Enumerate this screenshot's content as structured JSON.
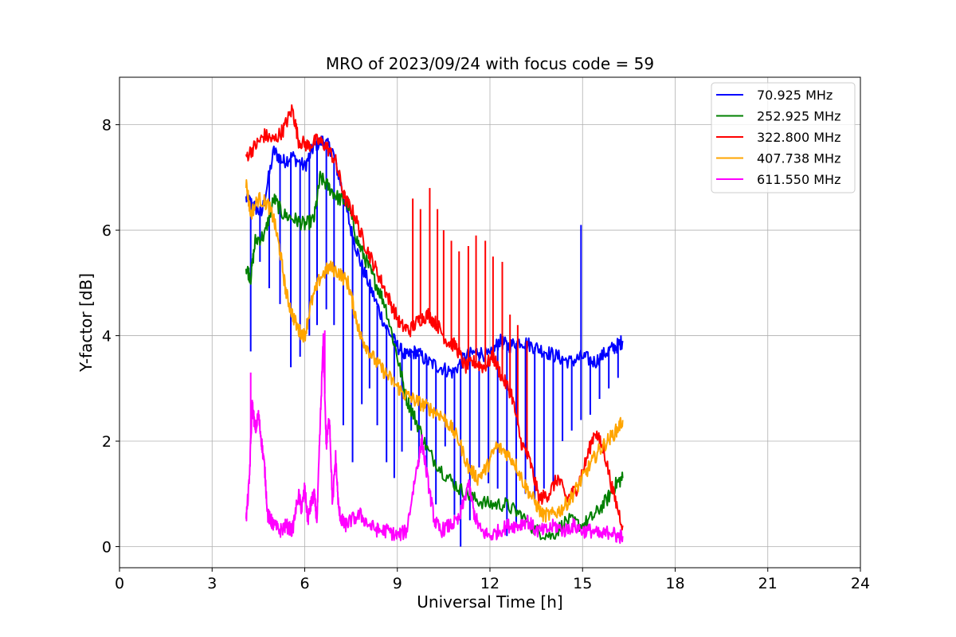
{
  "chart_data": {
    "type": "line",
    "title": "MRO of 2023/09/24 with focus code = 59",
    "xlabel": "Universal Time [h]",
    "ylabel": "Y-factor [dB]",
    "xlim": [
      0,
      24
    ],
    "ylim": [
      -0.4,
      8.9
    ],
    "xticks": [
      0,
      3,
      6,
      9,
      12,
      15,
      18,
      21,
      24
    ],
    "yticks": [
      0,
      2,
      4,
      6,
      8
    ],
    "xtick_labels": [
      "0",
      "3",
      "6",
      "9",
      "12",
      "15",
      "18",
      "21",
      "24"
    ],
    "ytick_labels": [
      "0",
      "2",
      "4",
      "6",
      "8"
    ],
    "grid": true,
    "legend_position": "top-right",
    "series": [
      {
        "name": "70.925 MHz",
        "legend_label": " 70.925 MHz",
        "color": "#0000ff",
        "x": [
          4.1,
          4.3,
          4.6,
          5.0,
          5.3,
          5.6,
          6.0,
          6.3,
          6.6,
          6.9,
          7.2,
          7.5,
          7.8,
          8.2,
          8.6,
          9.0,
          9.3,
          9.6,
          10.0,
          10.4,
          10.8,
          11.2,
          11.6,
          12.0,
          12.3,
          12.6,
          13.0,
          13.4,
          13.8,
          14.2,
          14.6,
          15.0,
          15.4,
          15.8,
          16.1,
          16.3
        ],
        "y": [
          6.6,
          6.5,
          6.3,
          7.5,
          7.3,
          7.4,
          7.2,
          7.6,
          7.7,
          7.5,
          6.8,
          6.0,
          5.4,
          4.8,
          4.2,
          3.8,
          3.6,
          3.7,
          3.5,
          3.4,
          3.3,
          3.6,
          3.7,
          3.6,
          3.9,
          3.8,
          3.9,
          3.8,
          3.7,
          3.6,
          3.5,
          3.6,
          3.5,
          3.7,
          3.8,
          3.9
        ],
        "dips": [
          [
            4.25,
            3.7
          ],
          [
            4.55,
            5.4
          ],
          [
            4.85,
            4.9
          ],
          [
            5.2,
            4.6
          ],
          [
            5.55,
            3.4
          ],
          [
            5.85,
            3.6
          ],
          [
            6.15,
            4.0
          ],
          [
            6.4,
            4.2
          ],
          [
            6.7,
            4.5
          ],
          [
            6.95,
            4.2
          ],
          [
            7.25,
            2.3
          ],
          [
            7.55,
            1.6
          ],
          [
            7.85,
            2.7
          ],
          [
            8.1,
            3.0
          ],
          [
            8.35,
            2.3
          ],
          [
            8.65,
            1.6
          ],
          [
            8.9,
            1.3
          ],
          [
            9.15,
            1.8
          ],
          [
            9.45,
            2.2
          ],
          [
            9.7,
            1.6
          ],
          [
            9.95,
            1.5
          ],
          [
            10.25,
            0.8
          ],
          [
            10.55,
            1.9
          ],
          [
            10.85,
            0.6
          ],
          [
            11.05,
            0.0
          ],
          [
            11.35,
            0.5
          ],
          [
            11.65,
            1.5
          ],
          [
            11.95,
            1.2
          ],
          [
            12.25,
            1.1
          ],
          [
            12.55,
            0.2
          ],
          [
            12.85,
            0.4
          ],
          [
            13.15,
            1.0
          ],
          [
            13.45,
            0.9
          ],
          [
            13.75,
            1.1
          ],
          [
            14.05,
            1.2
          ],
          [
            14.35,
            2.0
          ],
          [
            14.65,
            2.2
          ],
          [
            14.95,
            2.4
          ],
          [
            15.25,
            2.5
          ],
          [
            15.55,
            2.8
          ],
          [
            15.85,
            3.0
          ],
          [
            16.15,
            3.2
          ]
        ],
        "spikes": [
          [
            14.95,
            6.1
          ]
        ]
      },
      {
        "name": "252.925 MHz",
        "legend_label": "252.925 MHz",
        "color": "#008000",
        "x": [
          4.1,
          4.25,
          4.4,
          4.7,
          5.0,
          5.3,
          5.7,
          6.0,
          6.3,
          6.5,
          6.8,
          7.1,
          7.4,
          7.7,
          8.0,
          8.3,
          8.6,
          9.0,
          9.3,
          9.6,
          10.0,
          10.5,
          11.0,
          11.5,
          12.0,
          12.5,
          13.0,
          13.5,
          14.0,
          14.5,
          15.0,
          15.4,
          15.8,
          16.1,
          16.3
        ],
        "y": [
          5.3,
          5.1,
          5.8,
          5.9,
          6.6,
          6.3,
          6.2,
          6.1,
          6.2,
          7.0,
          6.8,
          6.6,
          6.5,
          5.8,
          5.4,
          5.0,
          4.6,
          3.6,
          2.8,
          2.4,
          1.8,
          1.4,
          1.1,
          0.9,
          0.8,
          0.8,
          0.6,
          0.3,
          0.2,
          0.5,
          0.4,
          0.6,
          0.9,
          1.2,
          1.3
        ]
      },
      {
        "name": "322.800 MHz",
        "legend_label": "322.800 MHz",
        "color": "#ff0000",
        "x": [
          4.1,
          4.4,
          4.7,
          5.0,
          5.3,
          5.6,
          5.8,
          6.1,
          6.4,
          6.7,
          7.0,
          7.3,
          7.6,
          7.9,
          8.2,
          8.5,
          8.8,
          9.1,
          9.4,
          9.7,
          10.0,
          10.3,
          10.6,
          10.9,
          11.2,
          11.5,
          11.8,
          12.1,
          12.4,
          12.7,
          13.0,
          13.3,
          13.6,
          13.9,
          14.2,
          14.5,
          14.8,
          15.1,
          15.4,
          15.7,
          16.0,
          16.3
        ],
        "y": [
          7.4,
          7.6,
          7.8,
          7.7,
          7.9,
          8.3,
          7.7,
          7.6,
          7.7,
          7.6,
          7.3,
          6.6,
          6.3,
          5.8,
          5.4,
          5.0,
          4.6,
          4.2,
          4.1,
          4.3,
          4.4,
          4.2,
          3.9,
          3.8,
          3.4,
          3.5,
          3.4,
          3.6,
          3.2,
          2.9,
          2.0,
          1.6,
          0.9,
          1.0,
          1.3,
          0.9,
          1.1,
          1.6,
          2.2,
          1.8,
          1.0,
          0.4
        ],
        "spikes": [
          [
            9.5,
            6.6
          ],
          [
            9.75,
            6.4
          ],
          [
            10.05,
            6.8
          ],
          [
            10.3,
            6.4
          ],
          [
            10.5,
            6.0
          ],
          [
            10.75,
            5.8
          ],
          [
            11.0,
            5.6
          ],
          [
            11.3,
            5.7
          ],
          [
            11.55,
            5.9
          ],
          [
            11.85,
            5.8
          ],
          [
            12.1,
            5.5
          ],
          [
            12.4,
            5.4
          ],
          [
            12.65,
            4.4
          ],
          [
            12.9,
            4.2
          ],
          [
            13.2,
            3.9
          ]
        ]
      },
      {
        "name": "407.738 MHz",
        "legend_label": "407.738 MHz",
        "color": "#ffa500",
        "x": [
          4.1,
          4.25,
          4.5,
          4.8,
          5.0,
          5.2,
          5.4,
          5.6,
          5.8,
          6.0,
          6.2,
          6.5,
          6.8,
          7.1,
          7.4,
          7.6,
          7.8,
          8.0,
          8.3,
          8.6,
          8.9,
          9.2,
          9.5,
          9.8,
          10.1,
          10.4,
          10.7,
          11.0,
          11.3,
          11.6,
          11.9,
          12.2,
          12.5,
          12.8,
          13.1,
          13.4,
          13.7,
          14.0,
          14.3,
          14.6,
          14.9,
          15.2,
          15.5,
          15.8,
          16.1,
          16.3
        ],
        "y": [
          6.9,
          6.3,
          6.6,
          6.5,
          6.2,
          5.6,
          4.8,
          4.4,
          4.1,
          4.0,
          4.6,
          5.1,
          5.3,
          5.2,
          5.0,
          4.5,
          4.0,
          3.8,
          3.5,
          3.3,
          3.1,
          2.9,
          2.8,
          2.7,
          2.6,
          2.5,
          2.3,
          2.0,
          1.5,
          1.3,
          1.5,
          1.9,
          1.8,
          1.6,
          1.2,
          0.9,
          0.6,
          0.6,
          0.7,
          0.9,
          1.2,
          1.5,
          1.8,
          2.0,
          2.2,
          2.4
        ]
      },
      {
        "name": "611.550 MHz",
        "legend_label": "611.550 MHz",
        "color": "#ff00ff",
        "x": [
          4.1,
          4.2,
          4.3,
          4.4,
          4.5,
          4.6,
          4.7,
          4.8,
          4.9,
          5.0,
          5.2,
          5.4,
          5.6,
          5.8,
          5.9,
          6.0,
          6.1,
          6.2,
          6.3,
          6.4,
          6.5,
          6.6,
          6.7,
          6.8,
          6.9,
          7.0,
          7.1,
          7.2,
          7.3,
          7.5,
          7.8,
          8.1,
          8.4,
          8.7,
          9.0,
          9.3,
          9.6,
          9.8,
          10.0,
          10.2,
          10.4,
          10.7,
          11.0,
          11.3,
          11.5,
          11.7,
          12.0,
          12.3,
          12.6,
          12.9,
          13.2,
          13.5,
          13.8,
          14.1,
          14.4,
          14.7,
          15.0,
          15.3,
          15.6,
          15.9,
          16.1,
          16.3
        ],
        "y": [
          0.5,
          1.2,
          2.7,
          2.2,
          2.5,
          2.0,
          1.5,
          0.6,
          0.5,
          0.4,
          0.3,
          0.4,
          0.3,
          1.0,
          0.7,
          1.1,
          0.5,
          0.8,
          1.0,
          0.5,
          2.3,
          3.9,
          1.9,
          2.5,
          0.8,
          1.7,
          0.7,
          0.5,
          0.4,
          0.5,
          0.6,
          0.4,
          0.3,
          0.3,
          0.2,
          0.3,
          1.4,
          2.0,
          1.2,
          0.5,
          0.3,
          0.4,
          0.5,
          1.2,
          0.6,
          0.3,
          0.2,
          0.3,
          0.4,
          0.4,
          0.5,
          0.3,
          0.3,
          0.4,
          0.3,
          0.4,
          0.3,
          0.3,
          0.2,
          0.3,
          0.2,
          0.2
        ],
        "spikes": [
          [
            4.25,
            3.3
          ],
          [
            6.65,
            4.1
          ]
        ]
      }
    ]
  }
}
